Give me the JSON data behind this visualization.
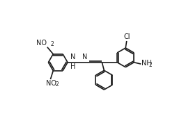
{
  "bg_color": "#ffffff",
  "line_color": "#1a1a1a",
  "lw": 1.2,
  "figsize": [
    2.54,
    1.9
  ],
  "dpi": 100,
  "xlim": [
    0,
    254
  ],
  "ylim": [
    0,
    190
  ],
  "ring_r": 18,
  "font_size": 7.0,
  "sub_font_size": 5.5
}
